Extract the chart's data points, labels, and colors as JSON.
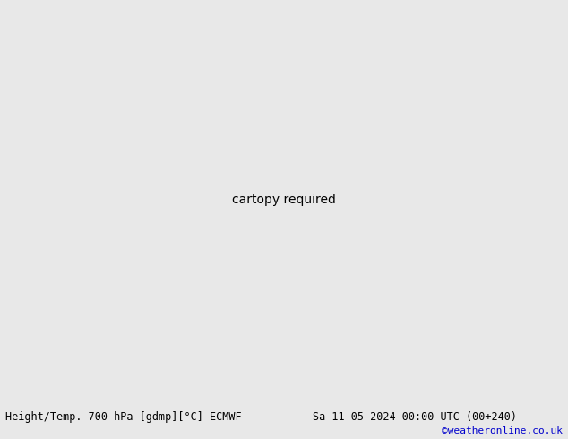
{
  "title_left": "Height/Temp. 700 hPa [gdmp][°C] ECMWF",
  "title_right": "Sa 11-05-2024 00:00 UTC (00+240)",
  "credit": "©weatheronline.co.uk",
  "land_color": "#c8eaaa",
  "ocean_color": "#c8c8c8",
  "bottom_bar_color": "#e8e8e8",
  "black_lw": 2.2,
  "orange_lw": 1.4,
  "red_lw": 1.4,
  "magenta_lw": 1.4,
  "font_size_label": 7,
  "font_size_bottom": 9
}
